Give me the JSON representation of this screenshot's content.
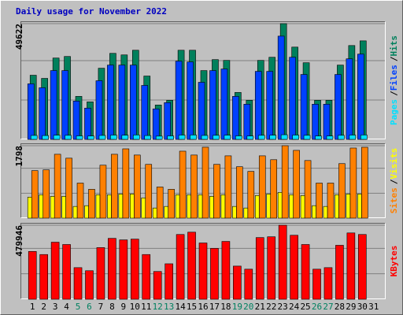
{
  "chart_data": {
    "type": "bar",
    "title": "Daily usage for November 2022",
    "categories": [
      "1",
      "2",
      "3",
      "4",
      "5",
      "6",
      "7",
      "8",
      "9",
      "10",
      "11",
      "12",
      "13",
      "14",
      "15",
      "16",
      "17",
      "18",
      "19",
      "20",
      "21",
      "22",
      "23",
      "24",
      "25",
      "26",
      "27",
      "28",
      "29",
      "30",
      "31"
    ],
    "category_color": "#000000",
    "highlight_color": "#008060",
    "highlighted": [
      4,
      5,
      11,
      12,
      18,
      19,
      25,
      26
    ],
    "panels": [
      {
        "ylim": [
          0,
          49622
        ],
        "yticks": [
          49622
        ],
        "legend_separator": "/",
        "series": [
          {
            "name": "Pages",
            "color": "#00e0ff",
            "values": [
              1700,
              1650,
              1800,
              1750,
              1500,
              1450,
              1700,
              1850,
              1800,
              1900,
              1650,
              1400,
              1500,
              1850,
              1900,
              1700,
              1750,
              1800,
              1500,
              1450,
              1750,
              1800,
              2000,
              1850,
              1750,
              1450,
              1450,
              1750,
              1850,
              1900,
              null
            ]
          },
          {
            "name": "Files",
            "color": "#0040ff",
            "values": [
              23806,
              22130,
              29506,
              29506,
              16430,
              13412,
              25148,
              31854,
              31854,
              31854,
              23136,
              13077,
              15759,
              33530,
              33195,
              24477,
              29506,
              30177,
              18442,
              15089,
              29171,
              29171,
              44260,
              35207,
              27830,
              15089,
              15089,
              27830,
              34536,
              36548,
              null
            ]
          },
          {
            "name": "Hits",
            "color": "#00805c",
            "values": [
              27500,
              26150,
              34870,
              35540,
              18440,
              16090,
              30510,
              36880,
              36210,
              38220,
              27160,
              14750,
              16760,
              38220,
              38220,
              29500,
              34200,
              33870,
              20120,
              16760,
              33870,
              35200,
              49622,
              39560,
              32860,
              16760,
              16760,
              31850,
              40230,
              42240,
              null
            ]
          }
        ]
      },
      {
        "ylim": [
          0,
          1798
        ],
        "yticks": [
          1798
        ],
        "legend_separator": "/",
        "series": [
          {
            "name": "Sites",
            "color": "#ff8000",
            "values": [
              1179,
              1198,
              1585,
              1488,
              870,
              715,
              1314,
              1585,
              1720,
              1566,
              1334,
              773,
              715,
              1662,
              1566,
              1760,
              1334,
              1546,
              1276,
              1160,
              1546,
              1450,
              1798,
              1682,
              1430,
              870,
              870,
              1353,
              1740,
              1759,
              null
            ]
          },
          {
            "name": "Visits",
            "color": "#ffff00",
            "values": [
              522,
              580,
              541,
              541,
              290,
              309,
              580,
              580,
              599,
              599,
              503,
              251,
              290,
              580,
              580,
              580,
              541,
              580,
              290,
              251,
              561,
              599,
              638,
              580,
              561,
              309,
              290,
              580,
              599,
              599,
              null
            ]
          }
        ]
      },
      {
        "ylim": [
          0,
          479946
        ],
        "yticks": [
          479946
        ],
        "series": [
          {
            "name": "KBytes",
            "color": "#ff0000",
            "values": [
              309938,
              289942,
              369926,
              354929,
              204959,
              184963,
              334933,
              394921,
              384923,
              389922,
              289942,
              179964,
              229954,
              419916,
              434913,
              364927,
              329934,
              374925,
              214957,
              194961,
              399920,
              404919,
              479946,
              414917,
              354929,
              194961,
              204959,
              349930,
              429914,
              419916,
              null
            ]
          }
        ]
      }
    ]
  }
}
